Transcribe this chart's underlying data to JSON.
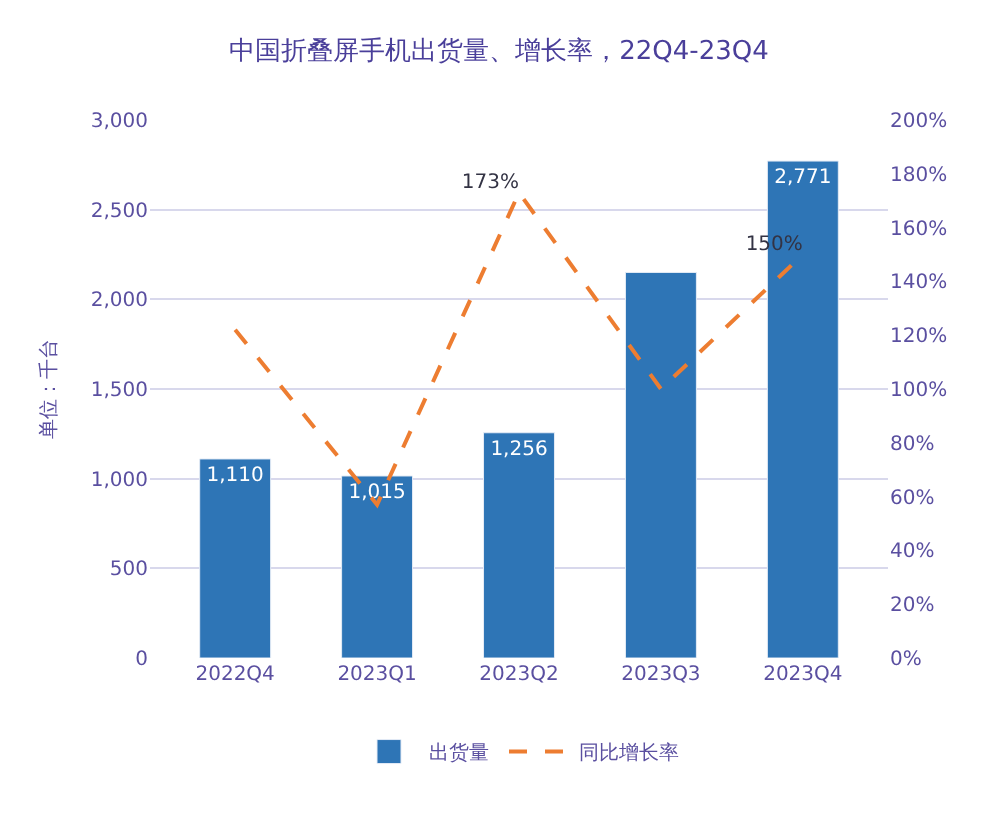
{
  "chart_data": {
    "type": "bar",
    "title": "中国折叠屏手机出货量、增长率，22Q4-23Q4",
    "ylabel": "单位：千台",
    "categories": [
      "2022Q4",
      "2023Q1",
      "2023Q2",
      "2023Q3",
      "2023Q4"
    ],
    "series": [
      {
        "name": "出货量",
        "color": "#2e75b6",
        "values": [
          1110,
          1015,
          1256,
          2150,
          2771
        ],
        "value_labels": [
          "1,110",
          "1,015",
          "1,256",
          null,
          "2,771"
        ]
      },
      {
        "name": "同比增长率",
        "type": "line",
        "axis": "y2",
        "color": "#ed7d31",
        "line_style": "dashed",
        "marker": "none",
        "values": [
          122,
          57,
          173,
          100,
          150
        ],
        "value_labels": [
          null,
          null,
          "173%",
          null,
          "150%"
        ]
      }
    ],
    "ylim": [
      0,
      3000
    ],
    "yticks": [
      {
        "value": 0,
        "label": "0"
      },
      {
        "value": 500,
        "label": "500"
      },
      {
        "value": 1000,
        "label": "1,000"
      },
      {
        "value": 1500,
        "label": "1,500"
      },
      {
        "value": 2000,
        "label": "2,000"
      },
      {
        "value": 2500,
        "label": "2,500"
      },
      {
        "value": 3000,
        "label": "3,000"
      }
    ],
    "y2lim": [
      0,
      200
    ],
    "y2ticks": [
      {
        "value": 0,
        "label": "0%"
      },
      {
        "value": 20,
        "label": "20%"
      },
      {
        "value": 40,
        "label": "40%"
      },
      {
        "value": 60,
        "label": "60%"
      },
      {
        "value": 80,
        "label": "80%"
      },
      {
        "value": 100,
        "label": "100%"
      },
      {
        "value": 120,
        "label": "120%"
      },
      {
        "value": 140,
        "label": "140%"
      },
      {
        "value": 160,
        "label": "160%"
      },
      {
        "value": 180,
        "label": "180%"
      },
      {
        "value": 200,
        "label": "200%"
      }
    ],
    "grid": "y",
    "legend": "bottom"
  }
}
